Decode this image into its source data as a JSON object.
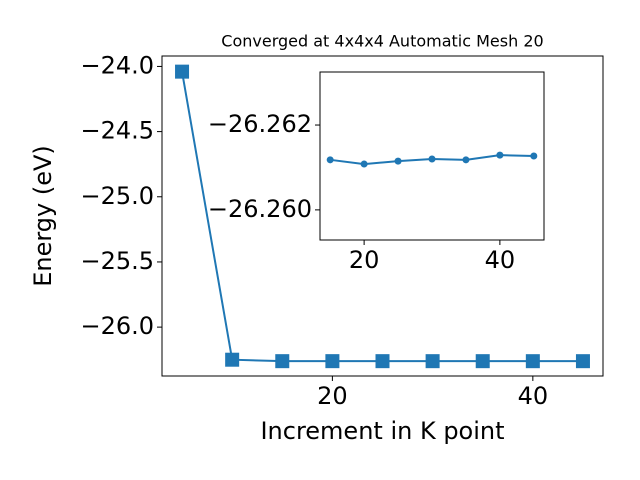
{
  "chart_data": [
    {
      "type": "line",
      "title": "Converged at 4x4x4 Automatic Mesh 20",
      "x_label": "Increment in K point",
      "y_label": "Energy (eV)",
      "x": [
        5,
        10,
        15,
        20,
        25,
        30,
        35,
        40,
        45
      ],
      "series": [
        {
          "color": "#1f77b4",
          "marker": "square",
          "values": [
            -24.04,
            -26.25,
            -26.26118,
            -26.26108,
            -26.26115,
            -26.2612,
            -26.26118,
            -26.26129,
            -26.26127
          ]
        }
      ],
      "xlim": [
        3,
        47
      ],
      "xticks": [
        20,
        40
      ],
      "ylim": [
        -26.375,
        -23.92
      ],
      "yticks": [
        {
          "value": -26.0,
          "label": "−26.0"
        },
        {
          "value": -25.5,
          "label": "−25.5"
        },
        {
          "value": -25.0,
          "label": "−25.0"
        },
        {
          "value": -24.5,
          "label": "−24.5"
        },
        {
          "value": -24.0,
          "label": "−24.0"
        }
      ]
    },
    {
      "type": "line",
      "x": [
        15,
        20,
        25,
        30,
        35,
        40,
        45
      ],
      "series": [
        {
          "color": "#1f77b4",
          "marker": "circle",
          "values": [
            -26.26118,
            -26.26108,
            -26.26115,
            -26.2612,
            -26.26118,
            -26.26129,
            -26.26127
          ]
        }
      ],
      "xlim": [
        13.5,
        46.5
      ],
      "xticks": [
        20,
        40
      ],
      "ylim": [
        -26.25929,
        -26.26325
      ],
      "yticks": [
        {
          "value": -26.26,
          "label": "−26.260"
        },
        {
          "value": -26.262,
          "label": "−26.262"
        }
      ]
    }
  ]
}
